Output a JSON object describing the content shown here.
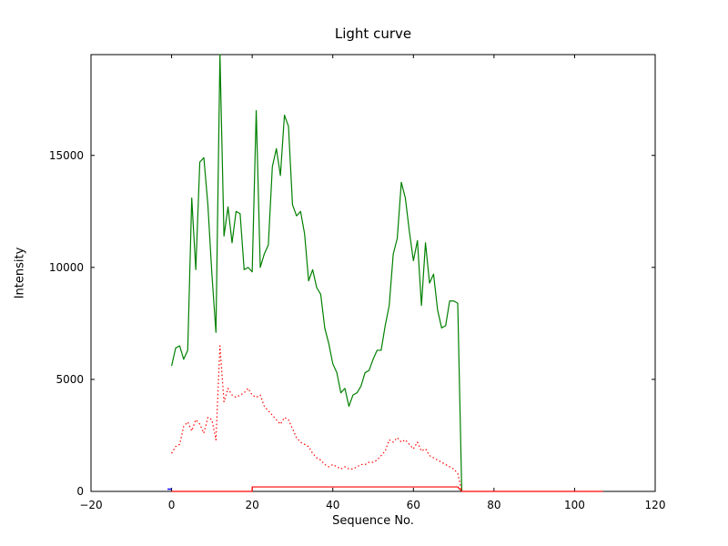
{
  "figure": {
    "title": "Light curve",
    "xlabel": "Sequence No.",
    "ylabel": "Intensity"
  },
  "chart_data": {
    "type": "line",
    "title": "Light curve",
    "xlabel": "Sequence No.",
    "ylabel": "Intensity",
    "xlim": [
      -20,
      120
    ],
    "ylim": [
      0,
      19500
    ],
    "xticks": [
      -20,
      0,
      20,
      40,
      60,
      80,
      100,
      120
    ],
    "xtick_labels": [
      "−20",
      "0",
      "20",
      "40",
      "60",
      "80",
      "100",
      "120"
    ],
    "yticks": [
      0,
      5000,
      10000,
      15000
    ],
    "ytick_labels": [
      "0",
      "5000",
      "10000",
      "15000"
    ],
    "grid": false,
    "legend": null,
    "background_color": "#ffffff",
    "axis_color": "#000000",
    "series": [
      {
        "name": "green-solid-lightcurve",
        "color": "#008000",
        "style": "solid",
        "width": 1.2,
        "x": [
          0,
          1,
          2,
          3,
          4,
          5,
          6,
          7,
          8,
          9,
          10,
          11,
          12,
          13,
          14,
          15,
          16,
          17,
          18,
          19,
          20,
          21,
          22,
          23,
          24,
          25,
          26,
          27,
          28,
          29,
          30,
          31,
          32,
          33,
          34,
          35,
          36,
          37,
          38,
          39,
          40,
          41,
          42,
          43,
          44,
          45,
          46,
          47,
          48,
          49,
          50,
          51,
          52,
          53,
          54,
          55,
          56,
          57,
          58,
          59,
          60,
          61,
          62,
          63,
          64,
          65,
          66,
          67,
          68,
          69,
          70,
          71,
          72
        ],
        "values": [
          5600,
          6400,
          6500,
          5900,
          6300,
          13100,
          9900,
          14700,
          14900,
          12800,
          9700,
          7100,
          19500,
          11400,
          12700,
          11100,
          12500,
          12400,
          9900,
          10000,
          9800,
          17000,
          10000,
          10600,
          11000,
          14500,
          15300,
          14100,
          16800,
          16300,
          12800,
          12300,
          12500,
          11500,
          9400,
          9900,
          9100,
          8800,
          7300,
          6600,
          5700,
          5300,
          4400,
          4600,
          3800,
          4300,
          4400,
          4700,
          5300,
          5400,
          5900,
          6300,
          6300,
          7400,
          8300,
          10600,
          11300,
          13800,
          13100,
          11600,
          10300,
          11200,
          8300,
          11100,
          9300,
          9700,
          8100,
          7300,
          7400,
          8500,
          8500,
          8400,
          0
        ]
      },
      {
        "name": "red-dotted-lightcurve",
        "color": "#ff0000",
        "style": "dotted",
        "width": 1.2,
        "x": [
          0,
          1,
          2,
          3,
          4,
          5,
          6,
          7,
          8,
          9,
          10,
          11,
          12,
          13,
          14,
          15,
          16,
          17,
          18,
          19,
          20,
          21,
          22,
          23,
          24,
          25,
          26,
          27,
          28,
          29,
          30,
          31,
          32,
          33,
          34,
          35,
          36,
          37,
          38,
          39,
          40,
          41,
          42,
          43,
          44,
          45,
          46,
          47,
          48,
          49,
          50,
          51,
          52,
          53,
          54,
          55,
          56,
          57,
          58,
          59,
          60,
          61,
          62,
          63,
          64,
          65,
          66,
          67,
          68,
          69,
          70,
          71,
          72
        ],
        "values": [
          1700,
          2000,
          2100,
          2900,
          3100,
          2700,
          3200,
          3000,
          2600,
          3300,
          3200,
          2300,
          6500,
          4000,
          4600,
          4300,
          4200,
          4300,
          4400,
          4600,
          4300,
          4200,
          4300,
          3800,
          3600,
          3400,
          3200,
          3000,
          3300,
          3200,
          2800,
          2400,
          2200,
          2100,
          2000,
          1700,
          1500,
          1400,
          1200,
          1100,
          1200,
          1100,
          1000,
          1100,
          1000,
          1000,
          1100,
          1200,
          1200,
          1300,
          1300,
          1400,
          1600,
          1800,
          2300,
          2200,
          2400,
          2200,
          2300,
          2100,
          1900,
          2200,
          1800,
          1900,
          1600,
          1500,
          1400,
          1300,
          1200,
          1100,
          1000,
          800,
          0
        ]
      },
      {
        "name": "red-solid-baseline-step",
        "color": "#ff0000",
        "style": "solid",
        "width": 1.2,
        "x": [
          0,
          20,
          20,
          71,
          72,
          107
        ],
        "values": [
          0,
          0,
          200,
          200,
          0,
          0
        ]
      },
      {
        "name": "blue-solid-marker",
        "color": "#0000ff",
        "style": "solid",
        "width": 1.5,
        "x": [
          -1,
          0
        ],
        "values": [
          100,
          100
        ]
      }
    ]
  }
}
